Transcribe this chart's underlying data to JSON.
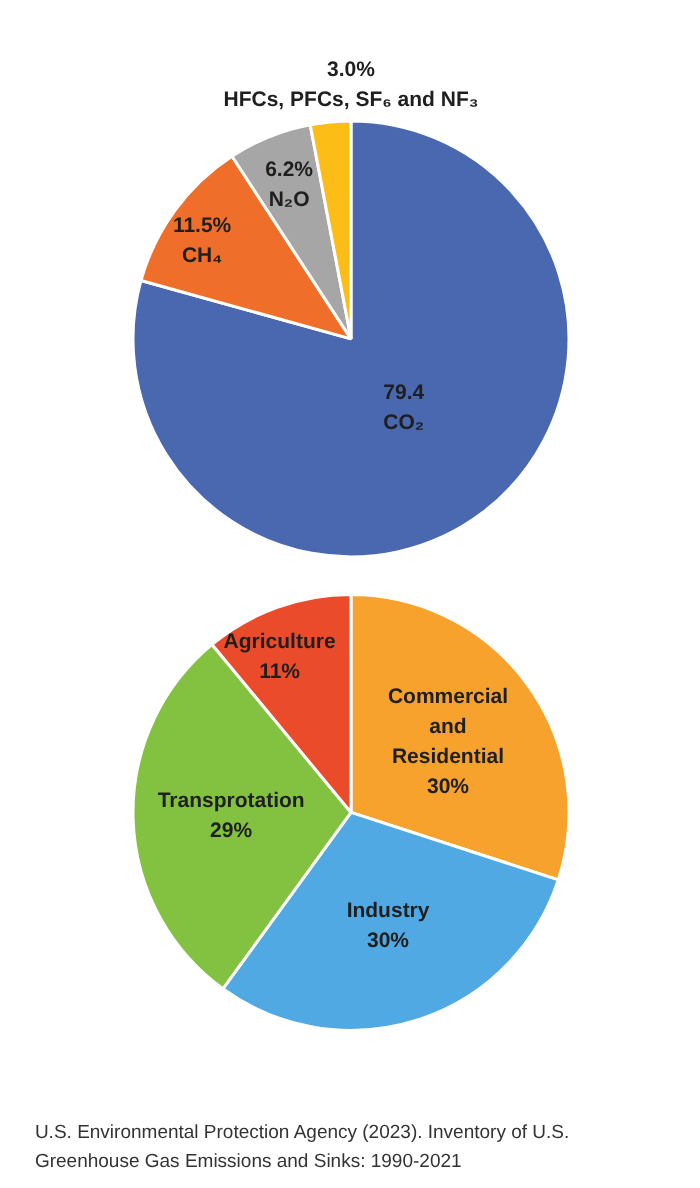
{
  "chart_data": [
    {
      "type": "pie",
      "categories": [
        "CO₂",
        "CH₄",
        "N₂O",
        "HFCs, PFCs, SF₆ and NF₃"
      ],
      "values": [
        79.4,
        11.5,
        6.2,
        3.0
      ],
      "colors": [
        "#4a68b0",
        "#ef6f2a",
        "#a6a6a6",
        "#fbbd16"
      ],
      "value_labels": [
        "79.4",
        "11.5%",
        "6.2%",
        "3.0%"
      ]
    },
    {
      "type": "pie",
      "categories": [
        "Commercial and Residential",
        "Industry",
        "Transprotation",
        "Agriculture"
      ],
      "values": [
        30,
        30,
        29,
        11
      ],
      "colors": [
        "#f6a22d",
        "#51a9e3",
        "#83c241",
        "#ea4b2b"
      ],
      "value_labels": [
        "30%",
        "30%",
        "29%",
        "11%"
      ],
      "annotations": [
        "U.S. Environmental Protection Agency (2023). Inventory of U.S. Greenhouse Gas Emissions and Sinks: 1990-2021"
      ]
    }
  ]
}
